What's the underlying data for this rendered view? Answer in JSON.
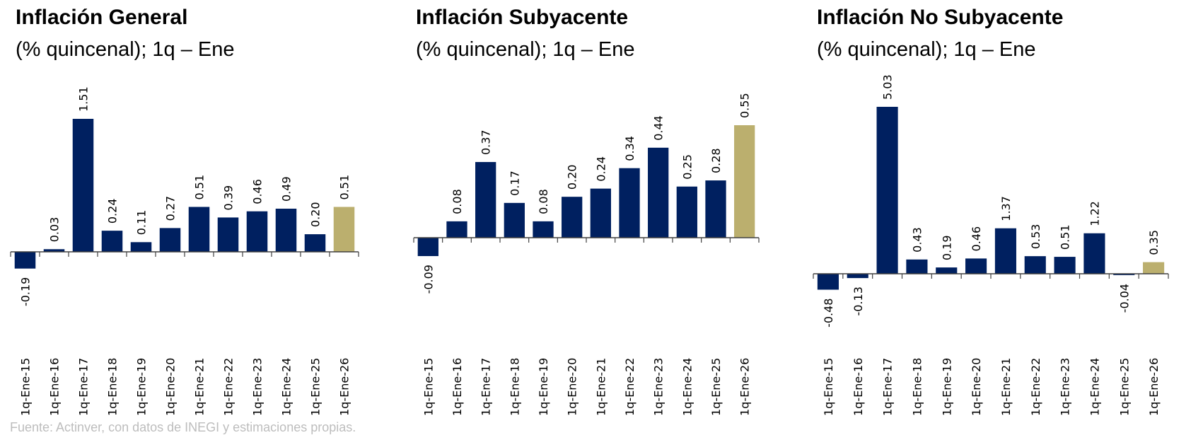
{
  "chart_data": [
    {
      "type": "bar",
      "title": "Inflación General",
      "subtitle": "(% quincenal); 1q – Ene",
      "categories": [
        "1q-Ene-15",
        "1q-Ene-16",
        "1q-Ene-17",
        "1q-Ene-18",
        "1q-Ene-19",
        "1q-Ene-20",
        "1q-Ene-21",
        "1q-Ene-22",
        "1q-Ene-23",
        "1q-Ene-24",
        "1q-Ene-25",
        "1q-Ene-26"
      ],
      "values": [
        -0.19,
        0.03,
        1.51,
        0.24,
        0.11,
        0.27,
        0.51,
        0.39,
        0.46,
        0.49,
        0.2,
        0.51
      ],
      "labels": [
        "-0.19",
        "0.03",
        "1.51",
        "0.24",
        "0.11",
        "0.27",
        "0.51",
        "0.39",
        "0.46",
        "0.49",
        "0.20",
        "0.51"
      ],
      "highlight_index": 11,
      "xlabel": "",
      "ylabel": "",
      "grid": false
    },
    {
      "type": "bar",
      "title": "Inflación Subyacente",
      "subtitle": "(% quincenal); 1q – Ene",
      "categories": [
        "1q-Ene-15",
        "1q-Ene-16",
        "1q-Ene-17",
        "1q-Ene-18",
        "1q-Ene-19",
        "1q-Ene-20",
        "1q-Ene-21",
        "1q-Ene-22",
        "1q-Ene-23",
        "1q-Ene-24",
        "1q-Ene-25",
        "1q-Ene-26"
      ],
      "values": [
        -0.09,
        0.08,
        0.37,
        0.17,
        0.08,
        0.2,
        0.24,
        0.34,
        0.44,
        0.25,
        0.28,
        0.55
      ],
      "labels": [
        "-0.09",
        "0.08",
        "0.37",
        "0.17",
        "0.08",
        "0.20",
        "0.24",
        "0.34",
        "0.44",
        "0.25",
        "0.28",
        "0.55"
      ],
      "highlight_index": 11,
      "xlabel": "",
      "ylabel": "",
      "grid": false
    },
    {
      "type": "bar",
      "title": "Inflación No Subyacente",
      "subtitle": "(% quincenal); 1q – Ene",
      "categories": [
        "1q-Ene-15",
        "1q-Ene-16",
        "1q-Ene-17",
        "1q-Ene-18",
        "1q-Ene-19",
        "1q-Ene-20",
        "1q-Ene-21",
        "1q-Ene-22",
        "1q-Ene-23",
        "1q-Ene-24",
        "1q-Ene-25",
        "1q-Ene-26"
      ],
      "values": [
        -0.48,
        -0.13,
        5.03,
        0.43,
        0.19,
        0.46,
        1.37,
        0.53,
        0.51,
        1.22,
        -0.04,
        0.35
      ],
      "labels": [
        "-0.48",
        "-0.13",
        "5.03",
        "0.43",
        "0.19",
        "0.46",
        "1.37",
        "0.53",
        "0.51",
        "1.22",
        "-0.04",
        "0.35"
      ],
      "highlight_index": 11,
      "xlabel": "",
      "ylabel": "",
      "grid": false
    }
  ],
  "colors": {
    "bar": "#002060",
    "highlight": "#BBAF6E",
    "axis": "#404040",
    "footer": "#bdbdbd"
  },
  "footer": "Fuente: Actinver, con datos de INEGI y estimaciones propias."
}
